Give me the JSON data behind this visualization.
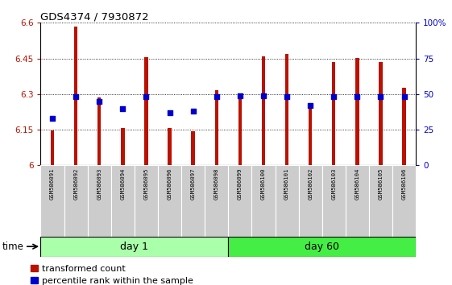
{
  "title": "GDS4374 / 7930872",
  "samples": [
    "GSM586091",
    "GSM586092",
    "GSM586093",
    "GSM586094",
    "GSM586095",
    "GSM586096",
    "GSM586097",
    "GSM586098",
    "GSM586099",
    "GSM586100",
    "GSM586101",
    "GSM586102",
    "GSM586103",
    "GSM586104",
    "GSM586105",
    "GSM586106"
  ],
  "transformed_count": [
    6.148,
    6.585,
    6.285,
    6.158,
    6.455,
    6.158,
    6.143,
    6.315,
    6.3,
    6.46,
    6.468,
    6.243,
    6.435,
    6.453,
    6.435,
    6.325
  ],
  "percentile_rank": [
    33,
    48,
    45,
    40,
    48,
    37,
    38,
    48,
    49,
    49,
    48,
    42,
    48,
    48,
    48,
    48
  ],
  "bar_color": "#bb1100",
  "dot_color": "#0000cc",
  "ylim_left": [
    6.0,
    6.6
  ],
  "ylim_right": [
    0,
    100
  ],
  "yticks_left": [
    6.0,
    6.15,
    6.3,
    6.45,
    6.6
  ],
  "ytick_labels_left": [
    "6",
    "6.15",
    "6.3",
    "6.45",
    "6.6"
  ],
  "yticks_right": [
    0,
    25,
    50,
    75,
    100
  ],
  "ytick_labels_right": [
    "0",
    "25",
    "50",
    "75",
    "100%"
  ],
  "group_day1": [
    0,
    1,
    2,
    3,
    4,
    5,
    6,
    7
  ],
  "group_day60": [
    8,
    9,
    10,
    11,
    12,
    13,
    14,
    15
  ],
  "group_day1_label": "day 1",
  "group_day60_label": "day 60",
  "group_day1_color": "#aaffaa",
  "group_day60_color": "#44ee44",
  "xlabel_time": "time",
  "legend_red": "transformed count",
  "legend_blue": "percentile rank within the sample",
  "tick_label_bg": "#cccccc",
  "bar_bottom": 6.0,
  "bar_width": 0.15
}
